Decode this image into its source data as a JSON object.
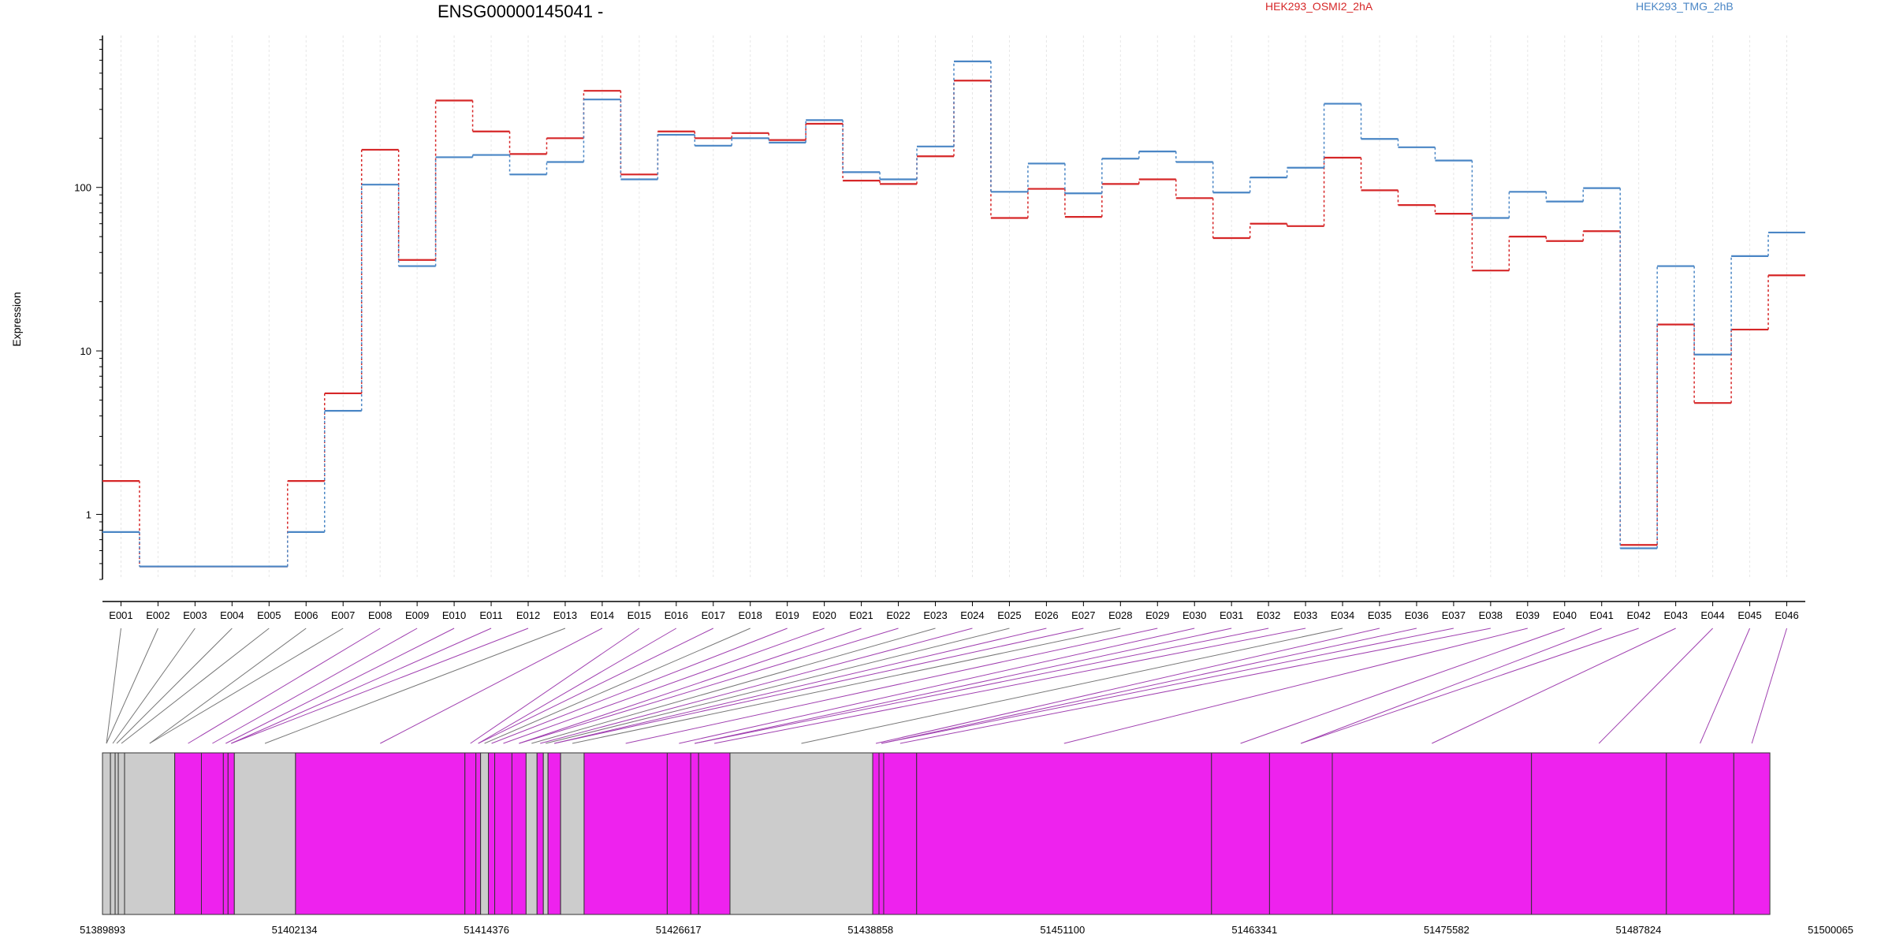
{
  "chart_data": {
    "type": "line",
    "title": "ENSG00000145041 -",
    "ylabel": "Expression",
    "yscale": "log",
    "ylim": [
      0.4,
      850
    ],
    "y_ticks": [
      {
        "value": 1,
        "label": "1"
      },
      {
        "value": 10,
        "label": "10"
      },
      {
        "value": 100,
        "label": "100"
      }
    ],
    "grid": "vertical",
    "legend_position": "top",
    "categories": [
      "E001",
      "E002",
      "E003",
      "E004",
      "E005",
      "E006",
      "E007",
      "E008",
      "E009",
      "E010",
      "E011",
      "E012",
      "E013",
      "E014",
      "E015",
      "E016",
      "E017",
      "E018",
      "E019",
      "E020",
      "E021",
      "E022",
      "E023",
      "E024",
      "E025",
      "E026",
      "E027",
      "E028",
      "E029",
      "E030",
      "E031",
      "E032",
      "E033",
      "E034",
      "E035",
      "E036",
      "E037",
      "E038",
      "E039",
      "E040",
      "E041",
      "E042",
      "E043",
      "E044",
      "E045",
      "E046"
    ],
    "series": [
      {
        "name": "HEK293_OSMI2_2hA",
        "color": "#d62728",
        "values": [
          1.6,
          0.48,
          0.48,
          0.48,
          0.48,
          1.6,
          5.5,
          170,
          36,
          340,
          220,
          160,
          200,
          390,
          120,
          220,
          200,
          215,
          195,
          245,
          110,
          105,
          155,
          450,
          65,
          98,
          66,
          105,
          112,
          86,
          49,
          60,
          58,
          152,
          96,
          78,
          69,
          31,
          50,
          47,
          54,
          0.65,
          14.5,
          4.8,
          13.5,
          29
        ]
      },
      {
        "name": "HEK293_TMG_2hB",
        "color": "#4a86c5",
        "values": [
          0.78,
          0.48,
          0.48,
          0.48,
          0.48,
          0.78,
          4.3,
          104,
          33,
          153,
          158,
          120,
          143,
          345,
          112,
          210,
          180,
          200,
          188,
          258,
          124,
          112,
          178,
          590,
          94,
          140,
          92,
          150,
          166,
          143,
          93,
          115,
          132,
          325,
          198,
          176,
          146,
          65,
          94,
          82,
          99,
          0.62,
          33,
          9.5,
          38,
          53
        ]
      }
    ],
    "exon_boundaries": [
      51389893,
      51390400,
      51390700,
      51390900,
      51391300,
      51394500,
      51396200,
      51397600,
      51397900,
      51398300,
      51402200,
      51413000,
      51413700,
      51414000,
      51414500,
      51414900,
      51416000,
      51416900,
      51417600,
      51418000,
      51418300,
      51419100,
      51420600,
      51425900,
      51427400,
      51427900,
      51429900,
      51439000,
      51439400,
      51439700,
      51441800,
      51460600,
      51464300,
      51468300,
      51481000,
      51489600,
      51493900,
      51496200
    ],
    "exons_highlighted": [
      5,
      6,
      7,
      8,
      10,
      11,
      12,
      14,
      15,
      16,
      18,
      20,
      22,
      23,
      24,
      25,
      27,
      28,
      29,
      30,
      31,
      32,
      33,
      34,
      35,
      36,
      38,
      40,
      42,
      43,
      45
    ],
    "exon_colors": {
      "highlight": "#ee22ee",
      "normal": "#cccccc"
    },
    "genome_ticks": [
      "51389893",
      "51402134",
      "51414376",
      "51426617",
      "51438858",
      "51451100",
      "51463341",
      "51475582",
      "51487824",
      "51500065"
    ],
    "genome_range": [
      51389893,
      51500065
    ]
  }
}
